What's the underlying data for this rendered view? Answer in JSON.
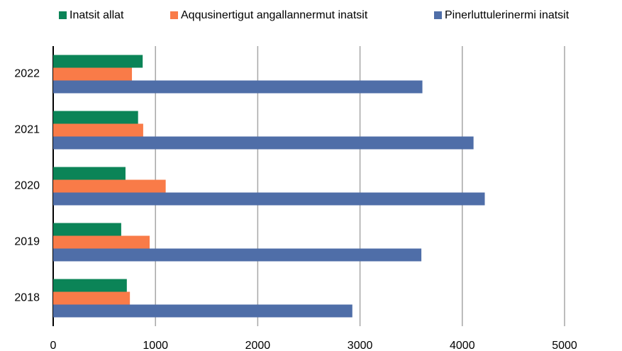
{
  "chart_data": {
    "type": "bar",
    "orientation": "horizontal",
    "categories": [
      "2022",
      "2021",
      "2020",
      "2019",
      "2018"
    ],
    "series": [
      {
        "name": "Inatsit allat",
        "color": "#0b8457",
        "values": [
          875,
          830,
          707,
          665,
          720
        ]
      },
      {
        "name": "Aqqusinertigut angallannermut inatsit",
        "color": "#f97b48",
        "values": [
          770,
          880,
          1100,
          943,
          750
        ]
      },
      {
        "name": "Pinerluttulerinermi inatsit",
        "color": "#4f6ea8",
        "values": [
          3610,
          4110,
          4220,
          3600,
          2925
        ]
      }
    ],
    "xlim": [
      0,
      5000
    ],
    "xticks": [
      0,
      1000,
      2000,
      3000,
      4000,
      5000
    ],
    "grid": true,
    "legend": "top"
  }
}
